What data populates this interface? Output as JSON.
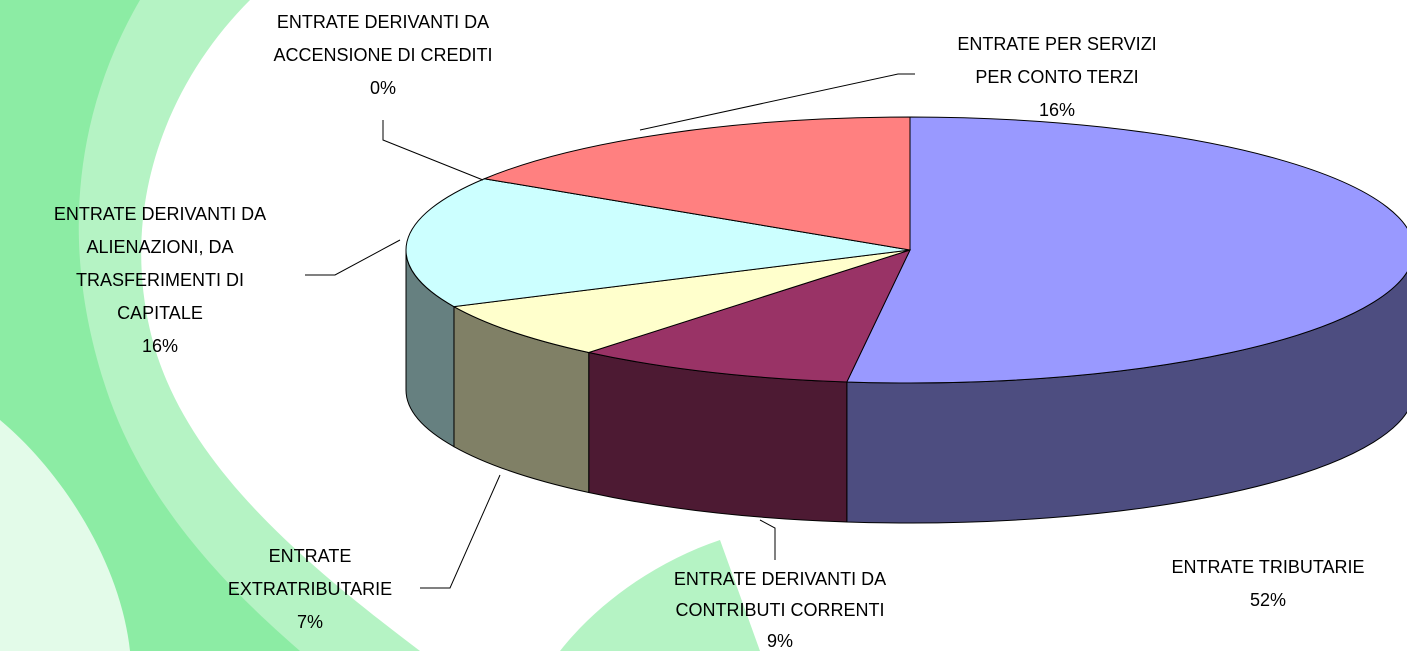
{
  "chart_data": {
    "type": "pie3d",
    "categories": [
      "ENTRATE TRIBUTARIE",
      "ENTRATE DERIVANTI DA\nCONTRIBUTI CORRENTI",
      "ENTRATE\nEXTRATRIBUTARIE",
      "ENTRATE DERIVANTI DA\nALIENAZIONI, DA\nTRASFERIMENTI DI\nCAPITALE",
      "ENTRATE DERIVANTI DA\nACCENSIONE DI CREDITI",
      "ENTRATE PER SERVIZI\nPER CONTO TERZI"
    ],
    "values": [
      52,
      9,
      7,
      16,
      0,
      16
    ],
    "value_labels": [
      "52%",
      "9%",
      "7%",
      "16%",
      "0%",
      "16%"
    ],
    "colors": [
      "#9999ff",
      "#993366",
      "#ffffcc",
      "#ccffff",
      "#660066",
      "#ff8080"
    ]
  }
}
